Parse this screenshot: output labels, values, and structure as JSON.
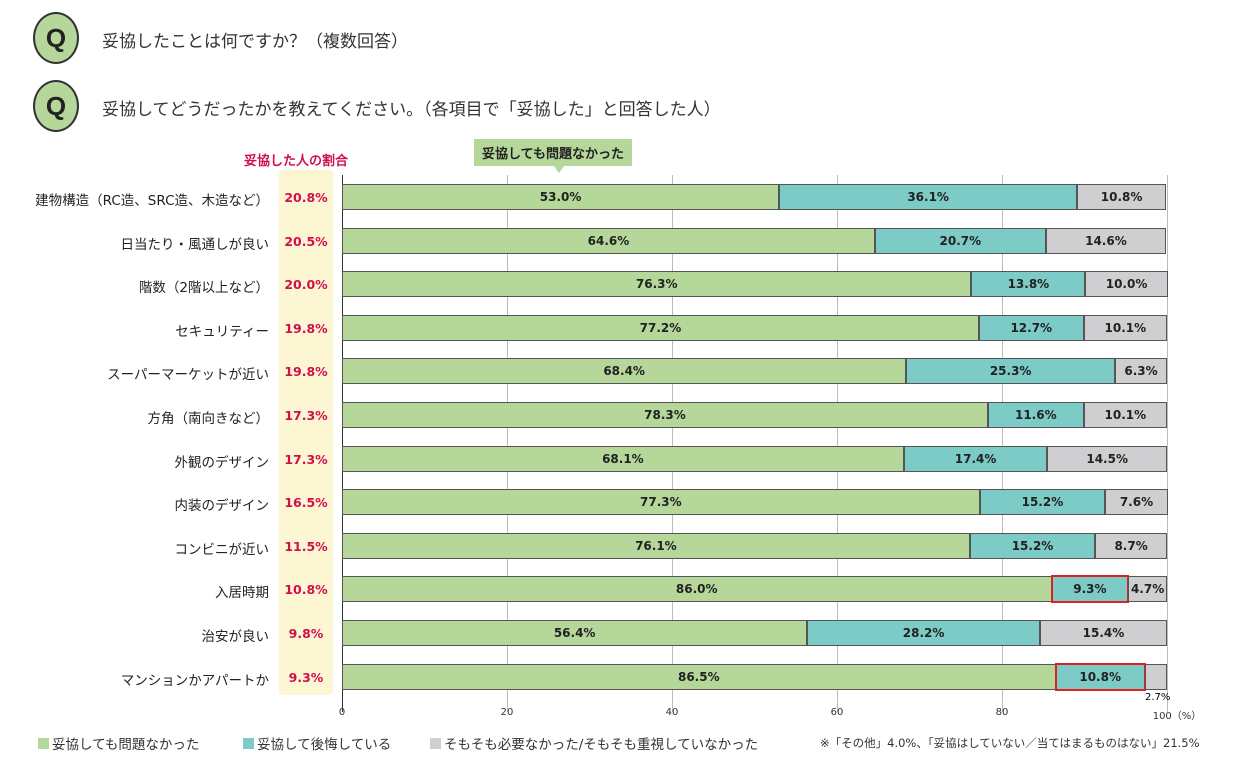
{
  "questions": [
    {
      "badge": "Q",
      "text": "妥協したことは何ですか？（複数回答）"
    },
    {
      "badge": "Q",
      "text": "妥協してどうだったかを教えてください。（各項目で「妥協した」と回答した人）"
    }
  ],
  "ratio_header": "妥協した人の割合",
  "callout": "妥協しても問題なかった",
  "footnote": "※「その他」4.0%、「妥協はしていない／当てはまるものはない」21.5%",
  "colors": {
    "ok": "#b6d79a",
    "regret": "#7ccbc6",
    "none": "#cfcfd1",
    "ratio": "#d0104c",
    "highlight": "#e02020"
  },
  "chart_data": {
    "type": "bar",
    "orientation": "horizontal",
    "stacked": true,
    "xlim": [
      0,
      100
    ],
    "x_ticks": [
      "0",
      "20",
      "40",
      "60",
      "80",
      "100（%）"
    ],
    "grid": true,
    "legend_position": "bottom",
    "categories": [
      "建物構造（RC造、SRC造、木造など）",
      "日当たり・風通しが良い",
      "階数（2階以上など）",
      "セキュリティー",
      "スーパーマーケットが近い",
      "方角（南向きなど）",
      "外観のデザイン",
      "内装のデザイン",
      "コンビニが近い",
      "入居時期",
      "治安が良い",
      "マンションかアパートか"
    ],
    "ratio": [
      "20.8%",
      "20.5%",
      "20.0%",
      "19.8%",
      "19.8%",
      "17.3%",
      "17.3%",
      "16.5%",
      "11.5%",
      "10.8%",
      "9.8%",
      "9.3%"
    ],
    "series": [
      {
        "name": "妥協しても問題なかった",
        "values": [
          53.0,
          64.6,
          76.3,
          77.2,
          68.4,
          78.3,
          68.1,
          77.3,
          76.1,
          86.0,
          56.4,
          86.5
        ]
      },
      {
        "name": "妥協して後悔している",
        "values": [
          36.1,
          20.7,
          13.8,
          12.7,
          25.3,
          11.6,
          17.4,
          15.2,
          15.2,
          9.3,
          28.2,
          10.8
        ]
      },
      {
        "name": "そもそも必要なかった/そもそも重視していなかった",
        "values": [
          10.8,
          14.6,
          10.0,
          10.1,
          6.3,
          10.1,
          14.5,
          7.6,
          8.7,
          4.7,
          15.4,
          2.7
        ]
      }
    ],
    "highlighted": [
      {
        "category": "入居時期",
        "series": "妥協して後悔している"
      },
      {
        "category": "マンションかアパートか",
        "series": "妥協して後悔している"
      }
    ]
  }
}
